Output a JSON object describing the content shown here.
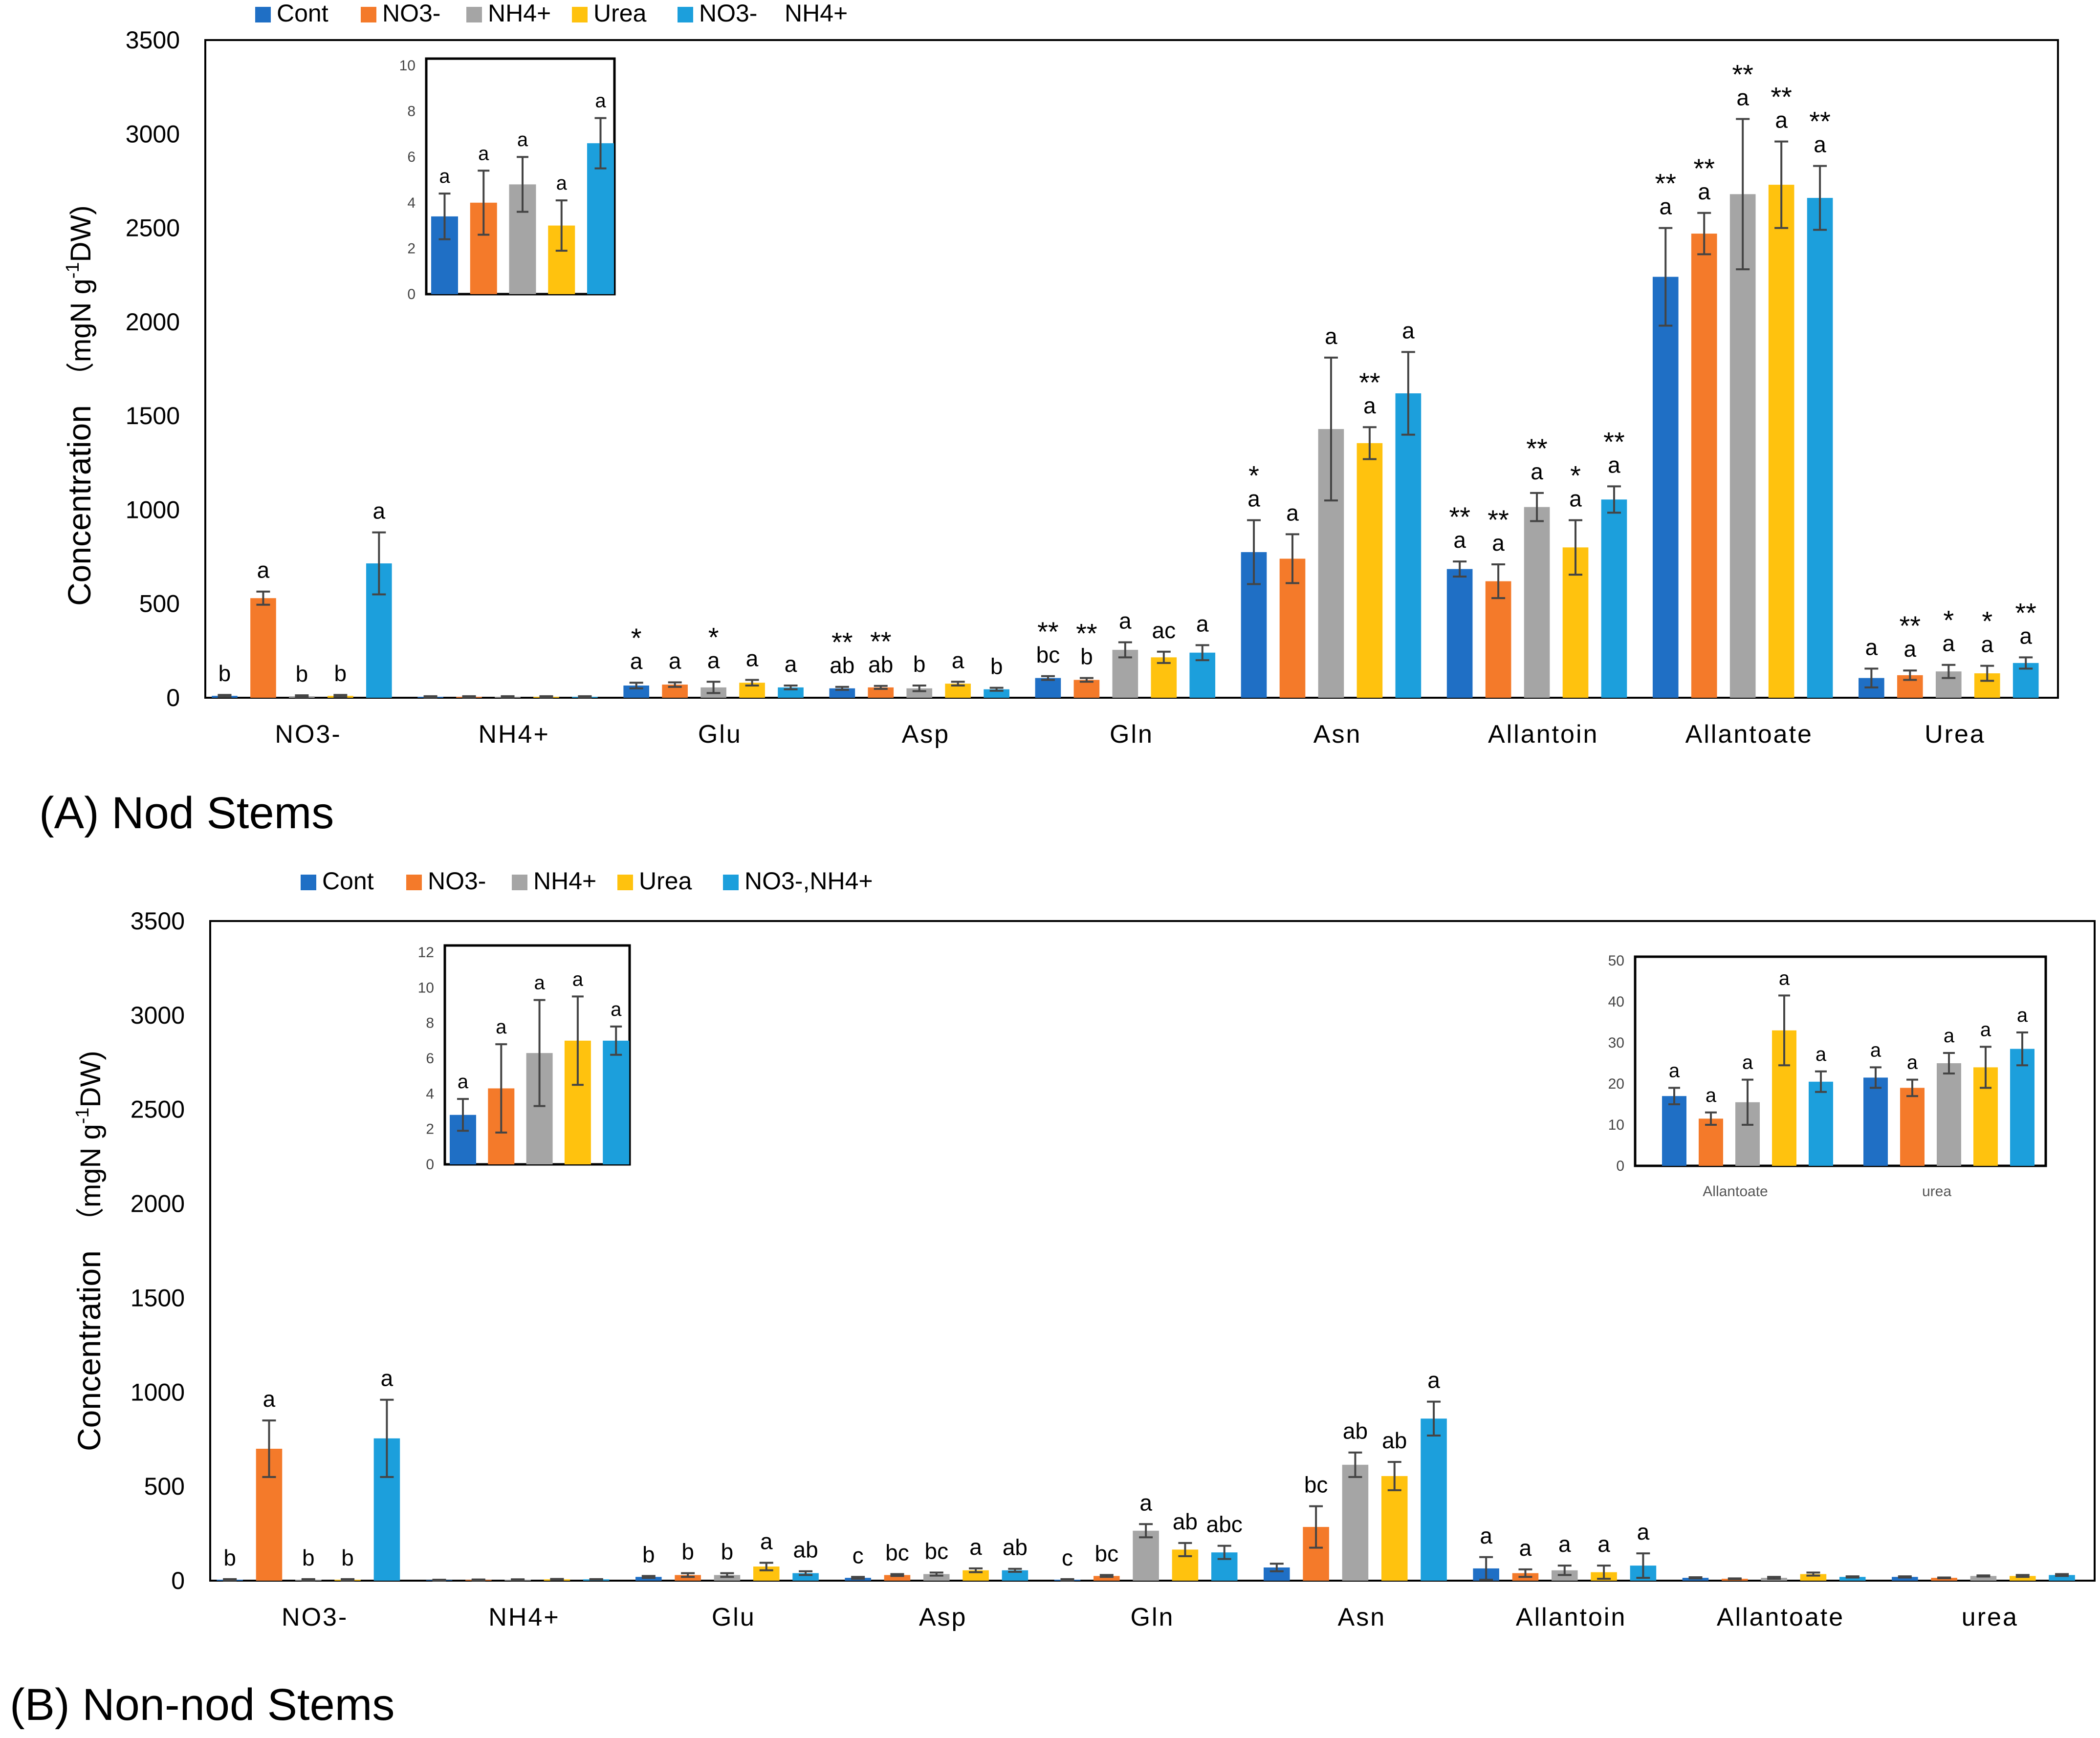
{
  "colors": {
    "Cont": "#1F6FC5",
    "NO3-": "#F47A2A",
    "NH4+": "#A5A5A5",
    "Urea": "#FFC20E",
    "NO3-,NH4+": "#1C9FDC"
  },
  "chart_data": [
    {
      "panel_id": "A",
      "type": "bar",
      "title": "(A) Nod Stems",
      "ylabel": "Concentration  （mgN g-1DW)",
      "ylabel_main": "Concentration",
      "ylabel_units_prefix": "（mgN g",
      "ylabel_units_sup": "-1",
      "ylabel_units_suffix": "DW)",
      "ylim": [
        0,
        3500
      ],
      "yticks": [
        0,
        500,
        1000,
        1500,
        2000,
        2500,
        3000,
        3500
      ],
      "legend": [
        "Cont",
        "NO3-",
        "NH4+",
        "Urea",
        "NO3-    NH4+"
      ],
      "categories": [
        "NO3-",
        "NH4+",
        "Glu",
        "Asp",
        "Gln",
        "Asn",
        "Allantoin",
        "Allantoate",
        "Urea"
      ],
      "series": [
        {
          "name": "Cont",
          "values": [
            10,
            5,
            65,
            50,
            105,
            775,
            685,
            2240,
            105
          ],
          "errors": [
            5,
            3,
            15,
            8,
            10,
            170,
            40,
            260,
            50
          ]
        },
        {
          "name": "NO3-",
          "values": [
            530,
            5,
            70,
            55,
            95,
            740,
            620,
            2470,
            120
          ],
          "errors": [
            35,
            3,
            12,
            8,
            10,
            130,
            90,
            110,
            25
          ]
        },
        {
          "name": "NH4+",
          "values": [
            8,
            5,
            55,
            50,
            255,
            1430,
            1015,
            2680,
            140
          ],
          "errors": [
            5,
            3,
            30,
            15,
            40,
            380,
            75,
            400,
            35
          ]
        },
        {
          "name": "Urea",
          "values": [
            10,
            5,
            80,
            75,
            215,
            1355,
            800,
            2730,
            130
          ],
          "errors": [
            5,
            3,
            15,
            10,
            30,
            85,
            145,
            230,
            40
          ]
        },
        {
          "name": "NO3-,NH4+",
          "values": [
            715,
            5,
            55,
            45,
            240,
            1620,
            1055,
            2660,
            185
          ],
          "errors": [
            165,
            3,
            10,
            8,
            40,
            220,
            70,
            170,
            30
          ]
        }
      ],
      "sig_letters": [
        [
          "b",
          "a",
          "b",
          "b",
          "a"
        ],
        [
          "",
          "",
          "",
          "",
          ""
        ],
        [
          "a",
          "a",
          "a",
          "a",
          "a"
        ],
        [
          "ab",
          "ab",
          "b",
          "a",
          "b"
        ],
        [
          "bc",
          "b",
          "a",
          "ac",
          "a"
        ],
        [
          "a",
          "a",
          "a",
          "a",
          "a"
        ],
        [
          "a",
          "a",
          "a",
          "a",
          "a"
        ],
        [
          "a",
          "a",
          "a",
          "a",
          "a"
        ],
        [
          "a",
          "a",
          "a",
          "a",
          "a"
        ]
      ],
      "stars": [
        [
          "",
          "",
          "",
          "",
          ""
        ],
        [
          "",
          "",
          "",
          "",
          ""
        ],
        [
          "*",
          "",
          "*",
          "",
          ""
        ],
        [
          "**",
          "**",
          "",
          "",
          ""
        ],
        [
          "**",
          "**",
          "",
          "",
          ""
        ],
        [
          "*",
          "",
          "",
          "**",
          ""
        ],
        [
          "**",
          "**",
          "**",
          "*",
          "**"
        ],
        [
          "**",
          "**",
          "**",
          "**",
          "**"
        ],
        [
          "",
          "**",
          "*",
          "*",
          "**"
        ]
      ],
      "inset": {
        "category": "NH4+",
        "ylim": [
          0,
          10
        ],
        "yticks": [
          0,
          2,
          4,
          6,
          8,
          10
        ],
        "values": [
          3.4,
          4.0,
          4.8,
          3.0,
          6.6
        ],
        "errors": [
          1.0,
          1.4,
          1.2,
          1.1,
          1.1
        ],
        "sig_letters": [
          "a",
          "a",
          "a",
          "a",
          "a"
        ]
      }
    },
    {
      "panel_id": "B",
      "type": "bar",
      "title": "(B) Non-nod Stems",
      "ylabel": "Concentration  （mgN g-1DW)",
      "ylabel_main": "Concentration",
      "ylabel_units_prefix": "（mgN g",
      "ylabel_units_sup": "-1",
      "ylabel_units_suffix": "DW)",
      "ylim": [
        0,
        3500
      ],
      "yticks": [
        0,
        500,
        1000,
        1500,
        2000,
        2500,
        3000,
        3500
      ],
      "legend": [
        "Cont",
        "NO3-",
        "NH4+",
        "Urea",
        "NO3-,NH4+"
      ],
      "categories": [
        "NO3-",
        "NH4+",
        "Glu",
        "Asp",
        "Gln",
        "Asn",
        "Allantoin",
        "Allantoate",
        "urea"
      ],
      "series": [
        {
          "name": "Cont",
          "values": [
            5,
            3,
            20,
            15,
            5,
            70,
            65,
            15,
            20
          ],
          "errors": [
            3,
            2,
            5,
            5,
            3,
            20,
            60,
            3,
            3
          ]
        },
        {
          "name": "NO3-",
          "values": [
            700,
            4,
            30,
            30,
            25,
            285,
            40,
            10,
            15
          ],
          "errors": [
            150,
            2,
            10,
            5,
            5,
            110,
            20,
            2,
            2
          ]
        },
        {
          "name": "NH4+",
          "values": [
            5,
            5,
            30,
            35,
            265,
            615,
            55,
            15,
            25
          ],
          "errors": [
            3,
            2,
            10,
            8,
            35,
            65,
            25,
            5,
            3
          ]
        },
        {
          "name": "Urea",
          "values": [
            5,
            7,
            75,
            55,
            165,
            555,
            45,
            35,
            25
          ],
          "errors": [
            3,
            2,
            20,
            10,
            35,
            75,
            35,
            8,
            5
          ]
        },
        {
          "name": "NO3-,NH4+",
          "values": [
            755,
            7,
            40,
            55,
            150,
            860,
            80,
            20,
            30
          ],
          "errors": [
            205,
            1,
            10,
            8,
            35,
            90,
            65,
            3,
            5
          ]
        }
      ],
      "sig_letters": [
        [
          "b",
          "a",
          "b",
          "b",
          "a"
        ],
        [
          "",
          "",
          "",
          "",
          ""
        ],
        [
          "b",
          "b",
          "b",
          "a",
          "ab"
        ],
        [
          "c",
          "bc",
          "bc",
          "a",
          "ab"
        ],
        [
          "c",
          "bc",
          "a",
          "ab",
          "abc"
        ],
        [
          "",
          "bc",
          "ab",
          "ab",
          "a"
        ],
        [
          "a",
          "a",
          "a",
          "a",
          "a"
        ],
        [
          "",
          "",
          "",
          "",
          ""
        ],
        [
          "",
          "",
          "",
          "",
          ""
        ]
      ],
      "stars": [],
      "inset": {
        "category": "NH4+",
        "ylim": [
          0,
          12
        ],
        "yticks": [
          0,
          2,
          4,
          6,
          8,
          10,
          12
        ],
        "values": [
          2.8,
          4.3,
          6.3,
          7.0,
          7.0
        ],
        "errors": [
          0.9,
          2.5,
          3.0,
          2.5,
          0.8
        ],
        "sig_letters": [
          "a",
          "a",
          "a",
          "a",
          "a"
        ]
      },
      "inset2": {
        "categories": [
          "Allantoate",
          "urea"
        ],
        "ylim": [
          0,
          50
        ],
        "yticks": [
          0,
          10,
          20,
          30,
          40,
          50
        ],
        "series_values": [
          [
            17,
            21.5
          ],
          [
            11.5,
            19
          ],
          [
            15.5,
            25
          ],
          [
            33,
            24
          ],
          [
            20.5,
            28.5
          ]
        ],
        "series_errors": [
          [
            2,
            2.5
          ],
          [
            1.5,
            2
          ],
          [
            5.5,
            2.5
          ],
          [
            8.5,
            5
          ],
          [
            2.5,
            4
          ]
        ],
        "sig_letters": [
          [
            "a",
            "a",
            "a",
            "a",
            "a"
          ],
          [
            "a",
            "a",
            "a",
            "a",
            "a"
          ]
        ]
      }
    }
  ]
}
